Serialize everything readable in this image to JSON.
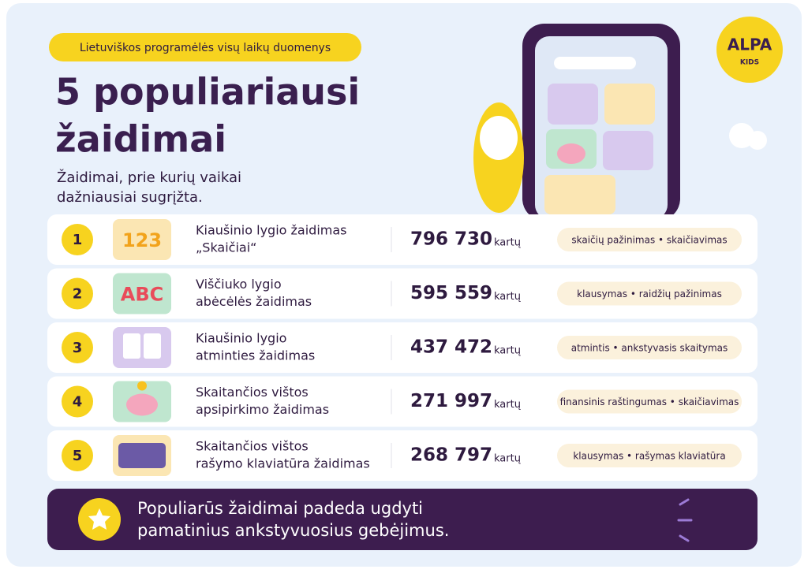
{
  "header": {
    "tag": "Lietuviškos programėlės visų laikų duomenys",
    "title": [
      "5 populiariausi",
      "žaidimai"
    ],
    "subtitle": [
      "Žaidimai, prie kurių vaikai",
      "dažniausiai sugrįžta."
    ]
  },
  "logo": {
    "brand": "ALPA",
    "sub": "KIDS"
  },
  "table": {
    "rows": [
      {
        "rank": "1",
        "icon_text": "123",
        "name": [
          "Kiaušinio lygio žaidimas",
          "„Skaičiai“"
        ],
        "count": "796 730",
        "unit": "kartų",
        "tags": "skaičių pažinimas • skaičiavimas"
      },
      {
        "rank": "2",
        "icon_text": "ABC",
        "name": [
          "Viščiuko lygio",
          "abėcėlės žaidimas"
        ],
        "count": "595 559",
        "unit": "kartų",
        "tags": "klausymas • raidžių pažinimas"
      },
      {
        "rank": "3",
        "name": [
          "Kiaušinio lygio",
          "atminties žaidimas"
        ],
        "count": "437 472",
        "unit": "kartų",
        "tags": "atmintis • ankstyvasis skaitymas"
      },
      {
        "rank": "4",
        "name": [
          "Skaitančios vištos",
          "apsipirkimo žaidimas"
        ],
        "count": "271 997",
        "unit": "kartų",
        "tags": "finansinis raštingumas • skaičiavimas"
      },
      {
        "rank": "5",
        "name": [
          "Skaitančios vištos",
          "rašymo klaviatūra žaidimas"
        ],
        "count": "268 797",
        "unit": "kartų",
        "tags": "klausymas • rašymas klaviatūra"
      }
    ]
  },
  "footer": {
    "text": [
      "Populiarūs žaidimai padeda ugdyti",
      "pamatinius ankstyvuosius gebėjimus."
    ]
  }
}
